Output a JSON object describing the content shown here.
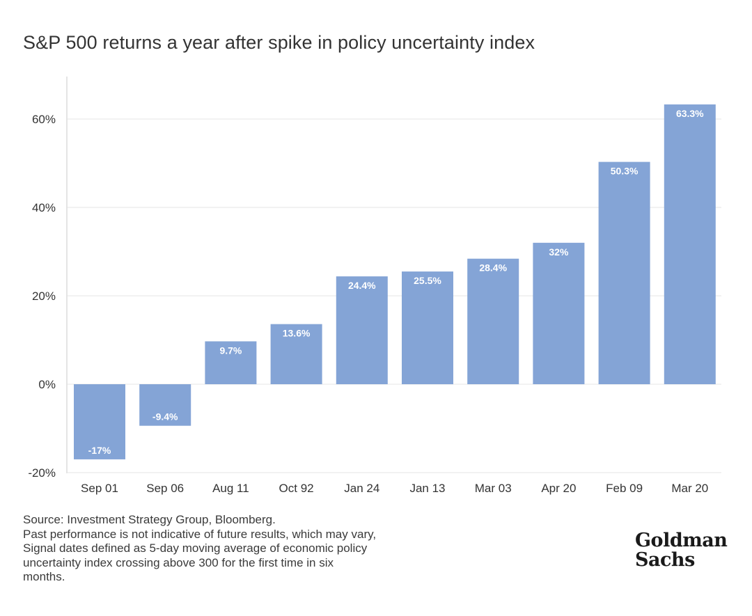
{
  "title": "S&P 500 returns a year after spike in policy uncertainty index",
  "footnote": {
    "lines": [
      "Source: Investment Strategy Group, Bloomberg.",
      "Past performance is not indicative of future results, which may vary,",
      "Signal dates defined as 5-day moving average of economic policy",
      "uncertainty index crossing above 300 for the first time in six",
      "months."
    ]
  },
  "logo": {
    "line1": "Goldman",
    "line2": "Sachs"
  },
  "colors": {
    "bar": "#84a4d6",
    "gridline": "#e4e4e4",
    "axis": "#c8c8c8",
    "text": "#333333",
    "data_label": "#ffffff"
  },
  "chart_data": {
    "type": "bar",
    "title": "S&P 500 returns a year after spike in policy uncertainty index",
    "xlabel": "",
    "ylabel": "",
    "categories": [
      "Sep 01",
      "Sep 06",
      "Aug 11",
      "Oct 92",
      "Jan 24",
      "Jan 13",
      "Mar 03",
      "Apr 20",
      "Feb 09",
      "Mar 20"
    ],
    "values": [
      -17,
      -9.4,
      9.7,
      13.6,
      24.4,
      25.5,
      28.4,
      32,
      50.3,
      63.3
    ],
    "data_labels": [
      "-17%",
      "-9.4%",
      "9.7%",
      "13.6%",
      "24.4%",
      "25.5%",
      "28.4%",
      "32%",
      "50.3%",
      "63.3%"
    ],
    "ylim": [
      -20,
      70
    ],
    "yticks": [
      -20,
      0,
      20,
      40,
      60
    ],
    "ytick_labels": [
      "-20%",
      "0%",
      "20%",
      "40%",
      "60%"
    ],
    "grid": true,
    "legend": "none"
  }
}
